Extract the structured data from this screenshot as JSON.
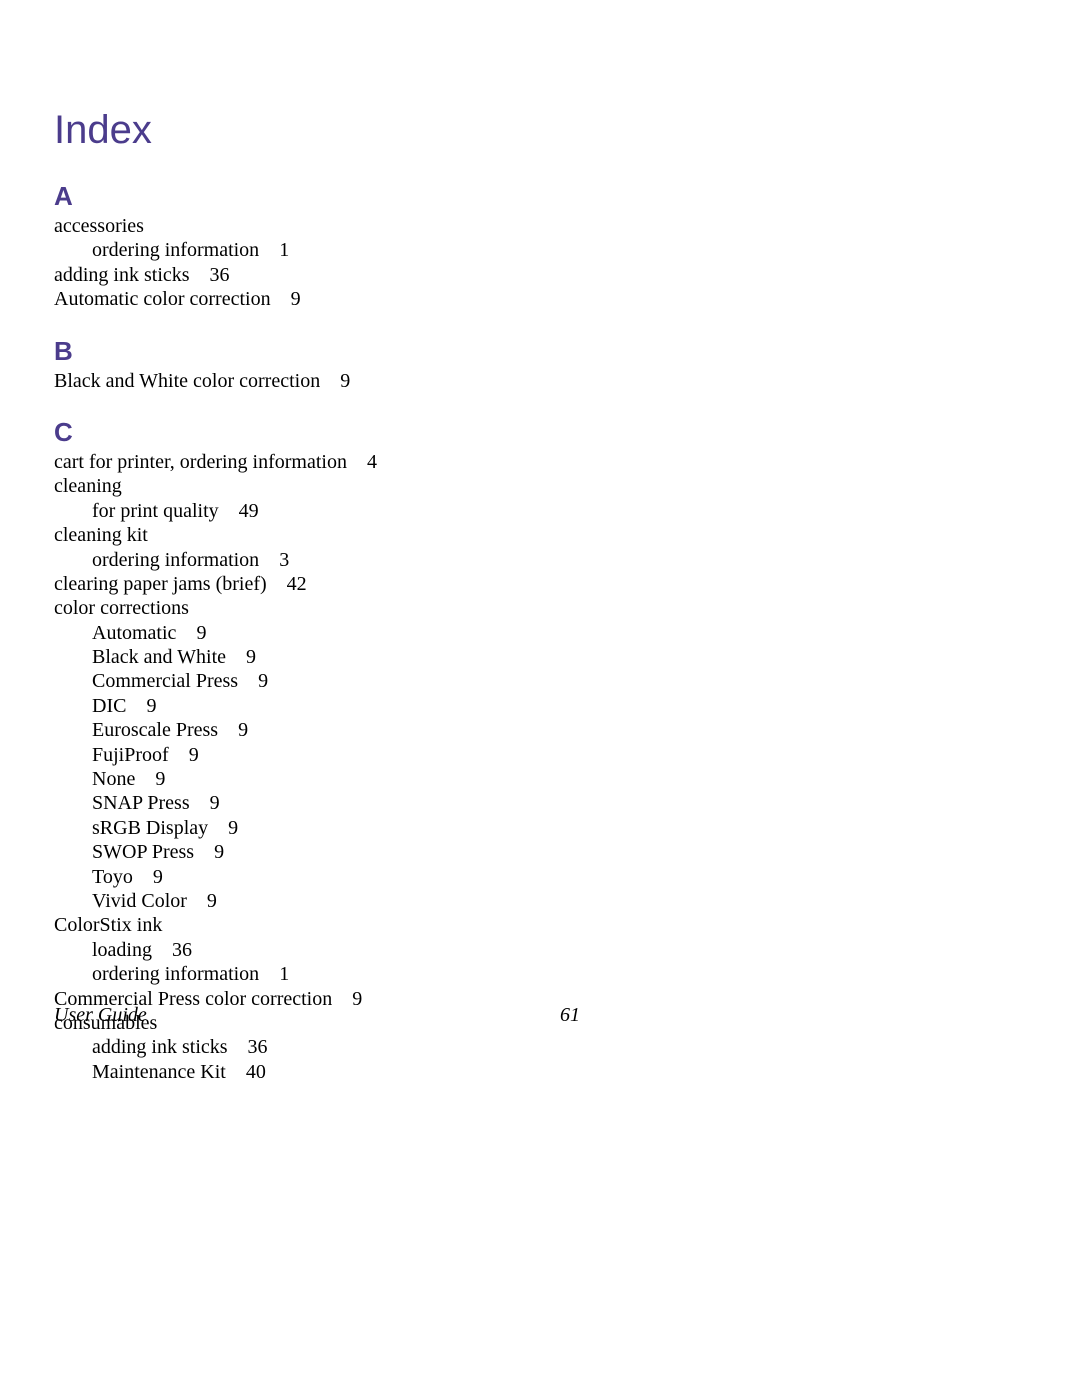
{
  "header": {
    "title": "Index"
  },
  "sections": {
    "A": {
      "letter": "A",
      "entries": [
        {
          "text": "accessories",
          "page": "",
          "indent": 0
        },
        {
          "text": "ordering information",
          "page": "1",
          "indent": 1
        },
        {
          "text": "adding ink sticks",
          "page": "36",
          "indent": 0
        },
        {
          "text": "Automatic color correction",
          "page": "9",
          "indent": 0
        }
      ]
    },
    "B": {
      "letter": "B",
      "entries": [
        {
          "text": "Black and White color correction",
          "page": "9",
          "indent": 0
        }
      ]
    },
    "C": {
      "letter": "C",
      "entries": [
        {
          "text": "cart for printer, ordering information",
          "page": "4",
          "indent": 0
        },
        {
          "text": "cleaning",
          "page": "",
          "indent": 0
        },
        {
          "text": "for print quality",
          "page": "49",
          "indent": 1
        },
        {
          "text": "cleaning kit",
          "page": "",
          "indent": 0
        },
        {
          "text": "ordering information",
          "page": "3",
          "indent": 1
        },
        {
          "text": "clearing paper jams (brief)",
          "page": "42",
          "indent": 0
        },
        {
          "text": "color corrections",
          "page": "",
          "indent": 0
        },
        {
          "text": "Automatic",
          "page": "9",
          "indent": 1
        },
        {
          "text": "Black and White",
          "page": "9",
          "indent": 1
        },
        {
          "text": "Commercial Press",
          "page": "9",
          "indent": 1
        },
        {
          "text": "DIC",
          "page": "9",
          "indent": 1
        },
        {
          "text": "Euroscale Press",
          "page": "9",
          "indent": 1
        },
        {
          "text": "FujiProof",
          "page": "9",
          "indent": 1
        },
        {
          "text": "None",
          "page": "9",
          "indent": 1
        },
        {
          "text": "SNAP Press",
          "page": "9",
          "indent": 1
        },
        {
          "text": "sRGB Display",
          "page": "9",
          "indent": 1
        },
        {
          "text": "SWOP Press",
          "page": "9",
          "indent": 1
        },
        {
          "text": "Toyo",
          "page": "9",
          "indent": 1
        },
        {
          "text": "Vivid Color",
          "page": "9",
          "indent": 1
        },
        {
          "text": "ColorStix ink",
          "page": "",
          "indent": 0
        },
        {
          "text": "loading",
          "page": "36",
          "indent": 1
        },
        {
          "text": "ordering information",
          "page": "1",
          "indent": 1
        },
        {
          "text": "Commercial Press color correction",
          "page": "9",
          "indent": 0
        },
        {
          "text": "consumables",
          "page": "",
          "indent": 0
        },
        {
          "text": "adding ink sticks",
          "page": "36",
          "indent": 1
        },
        {
          "text": "Maintenance Kit",
          "page": "40",
          "indent": 1
        }
      ]
    }
  },
  "footer": {
    "title": "User Guide",
    "page": "61"
  },
  "colors": {
    "heading_color": "#4b3c8c",
    "text_color": "#000000",
    "background_color": "#ffffff"
  },
  "typography": {
    "title_fontsize": 40,
    "letter_fontsize": 26,
    "body_fontsize": 20,
    "footer_fontsize": 20
  }
}
